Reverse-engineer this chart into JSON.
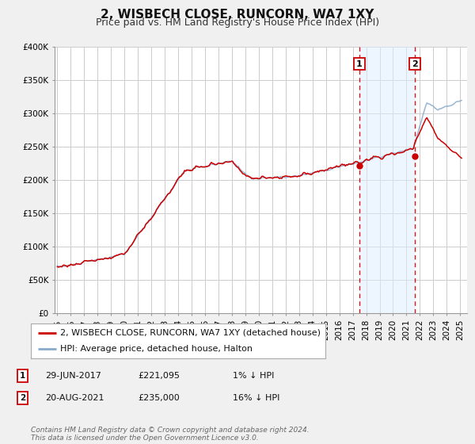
{
  "title": "2, WISBECH CLOSE, RUNCORN, WA7 1XY",
  "subtitle": "Price paid vs. HM Land Registry's House Price Index (HPI)",
  "ylim": [
    0,
    400000
  ],
  "yticks": [
    0,
    50000,
    100000,
    150000,
    200000,
    250000,
    300000,
    350000,
    400000
  ],
  "ytick_labels": [
    "£0",
    "£50K",
    "£100K",
    "£150K",
    "£200K",
    "£250K",
    "£300K",
    "£350K",
    "£400K"
  ],
  "xlim_start": 1994.8,
  "xlim_end": 2025.5,
  "xticks": [
    1995,
    1996,
    1997,
    1998,
    1999,
    2000,
    2001,
    2002,
    2003,
    2004,
    2005,
    2006,
    2007,
    2008,
    2009,
    2010,
    2011,
    2012,
    2013,
    2014,
    2015,
    2016,
    2017,
    2018,
    2019,
    2020,
    2021,
    2022,
    2023,
    2024,
    2025
  ],
  "sale1_date": 2017.49,
  "sale1_price": 221095,
  "sale1_label": "1",
  "sale2_date": 2021.63,
  "sale2_price": 235000,
  "sale2_label": "2",
  "line_color_red": "#cc0000",
  "line_color_blue": "#88aacc",
  "dot_color": "#cc0000",
  "vline_color": "#cc0000",
  "bg_color": "#f0f0f0",
  "plot_bg_color": "#ffffff",
  "grid_color": "#cccccc",
  "legend_label_red": "2, WISBECH CLOSE, RUNCORN, WA7 1XY (detached house)",
  "legend_label_blue": "HPI: Average price, detached house, Halton",
  "annotation1_date": "29-JUN-2017",
  "annotation1_price": "£221,095",
  "annotation1_hpi": "1% ↓ HPI",
  "annotation2_date": "20-AUG-2021",
  "annotation2_price": "£235,000",
  "annotation2_hpi": "16% ↓ HPI",
  "footer": "Contains HM Land Registry data © Crown copyright and database right 2024.\nThis data is licensed under the Open Government Licence v3.0.",
  "title_fontsize": 11,
  "subtitle_fontsize": 9,
  "tick_fontsize": 7.5
}
